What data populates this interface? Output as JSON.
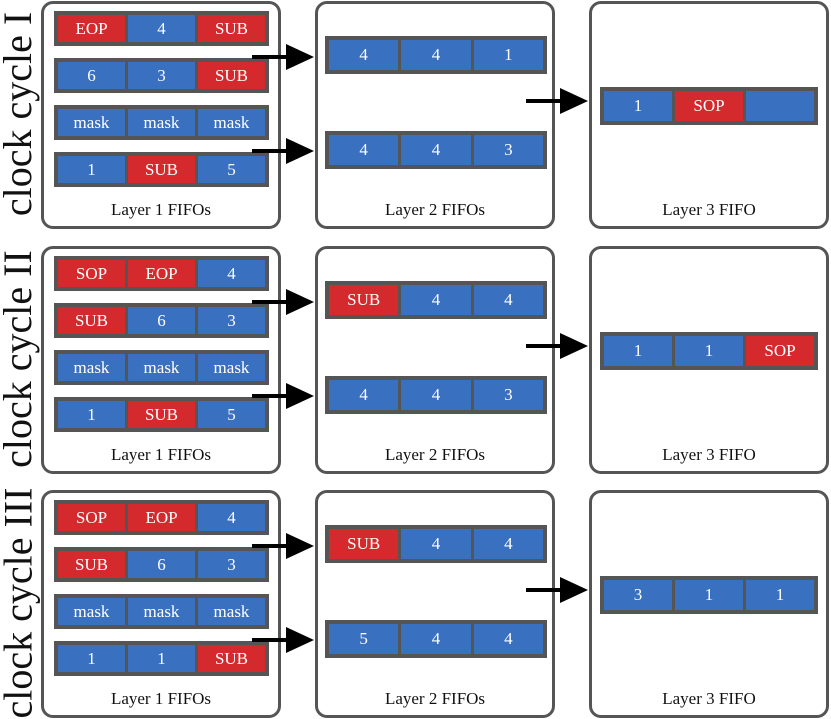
{
  "colors": {
    "blue": "#3a70c0",
    "red": "#d42a2d",
    "fifo_border": "#555555",
    "panel_border": "#555555",
    "arrow": "#000000"
  },
  "cycles": [
    {
      "label": "clock cycle I",
      "layer1": {
        "caption": "Layer 1 FIFOs",
        "fifos": [
          [
            {
              "text": "EOP",
              "color": "red"
            },
            {
              "text": "4",
              "color": "blue"
            },
            {
              "text": "SUB",
              "color": "red"
            }
          ],
          [
            {
              "text": "6",
              "color": "blue"
            },
            {
              "text": "3",
              "color": "blue"
            },
            {
              "text": "SUB",
              "color": "red"
            }
          ],
          [
            {
              "text": "mask",
              "color": "blue"
            },
            {
              "text": "mask",
              "color": "blue"
            },
            {
              "text": "mask",
              "color": "blue"
            }
          ],
          [
            {
              "text": "1",
              "color": "blue"
            },
            {
              "text": "SUB",
              "color": "red"
            },
            {
              "text": "5",
              "color": "blue"
            }
          ]
        ]
      },
      "layer2": {
        "caption": "Layer 2 FIFOs",
        "fifos": [
          [
            {
              "text": "4",
              "color": "blue"
            },
            {
              "text": "4",
              "color": "blue"
            },
            {
              "text": "1",
              "color": "blue"
            }
          ],
          [
            {
              "text": "4",
              "color": "blue"
            },
            {
              "text": "4",
              "color": "blue"
            },
            {
              "text": "3",
              "color": "blue"
            }
          ]
        ]
      },
      "layer3": {
        "caption": "Layer 3 FIFO",
        "fifo": [
          {
            "text": "1",
            "color": "blue"
          },
          {
            "text": "SOP",
            "color": "red"
          },
          {
            "text": "",
            "color": "blue"
          }
        ]
      }
    },
    {
      "label": "clock cycle II",
      "layer1": {
        "caption": "Layer 1 FIFOs",
        "fifos": [
          [
            {
              "text": "SOP",
              "color": "red"
            },
            {
              "text": "EOP",
              "color": "red"
            },
            {
              "text": "4",
              "color": "blue"
            }
          ],
          [
            {
              "text": "SUB",
              "color": "red"
            },
            {
              "text": "6",
              "color": "blue"
            },
            {
              "text": "3",
              "color": "blue"
            }
          ],
          [
            {
              "text": "mask",
              "color": "blue"
            },
            {
              "text": "mask",
              "color": "blue"
            },
            {
              "text": "mask",
              "color": "blue"
            }
          ],
          [
            {
              "text": "1",
              "color": "blue"
            },
            {
              "text": "SUB",
              "color": "red"
            },
            {
              "text": "5",
              "color": "blue"
            }
          ]
        ]
      },
      "layer2": {
        "caption": "Layer 2 FIFOs",
        "fifos": [
          [
            {
              "text": "SUB",
              "color": "red"
            },
            {
              "text": "4",
              "color": "blue"
            },
            {
              "text": "4",
              "color": "blue"
            }
          ],
          [
            {
              "text": "4",
              "color": "blue"
            },
            {
              "text": "4",
              "color": "blue"
            },
            {
              "text": "3",
              "color": "blue"
            }
          ]
        ]
      },
      "layer3": {
        "caption": "Layer 3 FIFO",
        "fifo": [
          {
            "text": "1",
            "color": "blue"
          },
          {
            "text": "1",
            "color": "blue"
          },
          {
            "text": "SOP",
            "color": "red"
          }
        ]
      }
    },
    {
      "label": "clock cycle III",
      "layer1": {
        "caption": "Layer 1 FIFOs",
        "fifos": [
          [
            {
              "text": "SOP",
              "color": "red"
            },
            {
              "text": "EOP",
              "color": "red"
            },
            {
              "text": "4",
              "color": "blue"
            }
          ],
          [
            {
              "text": "SUB",
              "color": "red"
            },
            {
              "text": "6",
              "color": "blue"
            },
            {
              "text": "3",
              "color": "blue"
            }
          ],
          [
            {
              "text": "mask",
              "color": "blue"
            },
            {
              "text": "mask",
              "color": "blue"
            },
            {
              "text": "mask",
              "color": "blue"
            }
          ],
          [
            {
              "text": "1",
              "color": "blue"
            },
            {
              "text": "1",
              "color": "blue"
            },
            {
              "text": "SUB",
              "color": "red"
            }
          ]
        ]
      },
      "layer2": {
        "caption": "Layer 2 FIFOs",
        "fifos": [
          [
            {
              "text": "SUB",
              "color": "red"
            },
            {
              "text": "4",
              "color": "blue"
            },
            {
              "text": "4",
              "color": "blue"
            }
          ],
          [
            {
              "text": "5",
              "color": "blue"
            },
            {
              "text": "4",
              "color": "blue"
            },
            {
              "text": "4",
              "color": "blue"
            }
          ]
        ]
      },
      "layer3": {
        "caption": "Layer 3 FIFO",
        "fifo": [
          {
            "text": "3",
            "color": "blue"
          },
          {
            "text": "1",
            "color": "blue"
          },
          {
            "text": "1",
            "color": "blue"
          }
        ]
      }
    }
  ]
}
